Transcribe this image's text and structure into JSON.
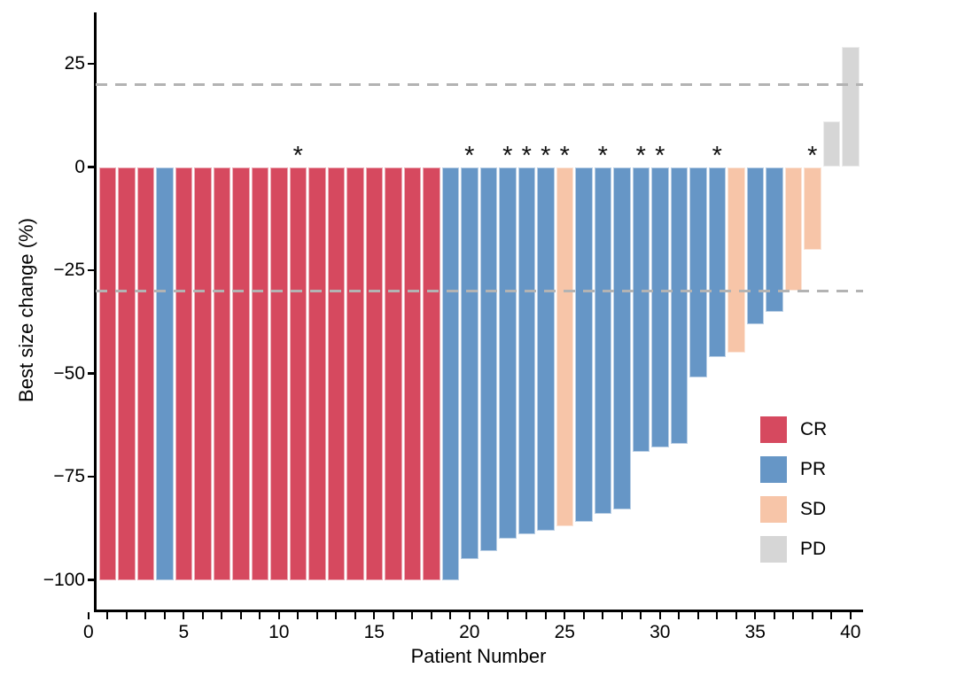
{
  "chart_data": {
    "type": "bar",
    "subtype": "waterfall",
    "title": "",
    "xlabel": "Patient Number",
    "ylabel": "Best size change (%)",
    "xlim": [
      0,
      40.6
    ],
    "ylim": [
      -108,
      37
    ],
    "grid": "off",
    "legend_position": "inside-right",
    "threshold_lines": {
      "values": [
        20,
        -30
      ],
      "style": "dashed",
      "color": "#b3b3b3"
    },
    "y_ticks": [
      {
        "value": 25,
        "label": "25"
      },
      {
        "value": 0,
        "label": "0"
      },
      {
        "value": -25,
        "label": "−25"
      },
      {
        "value": -50,
        "label": "−50"
      },
      {
        "value": -75,
        "label": "−75"
      },
      {
        "value": -100,
        "label": "−100"
      }
    ],
    "x_minor_tick_every": 1,
    "x_labeled_ticks": [
      {
        "value": 0,
        "label": "0"
      },
      {
        "value": 5,
        "label": "5"
      },
      {
        "value": 10,
        "label": "10"
      },
      {
        "value": 15,
        "label": "15"
      },
      {
        "value": 20,
        "label": "20"
      },
      {
        "value": 25,
        "label": "25"
      },
      {
        "value": 30,
        "label": "30"
      },
      {
        "value": 35,
        "label": "35"
      },
      {
        "value": 40,
        "label": "40"
      }
    ],
    "response_colors": {
      "CR": "#d6495f",
      "PR": "#6696c6",
      "SD": "#f7c5a8",
      "PD": "#d6d6d6"
    },
    "legend": [
      {
        "label": "CR",
        "color": "#d6495f"
      },
      {
        "label": "PR",
        "color": "#6696c6"
      },
      {
        "label": "SD",
        "color": "#f7c5a8"
      },
      {
        "label": "PD",
        "color": "#d6d6d6"
      }
    ],
    "annotation_symbol": "*",
    "patients": [
      {
        "patient": 1,
        "change": -100,
        "response": "CR",
        "star": false
      },
      {
        "patient": 2,
        "change": -100,
        "response": "CR",
        "star": false
      },
      {
        "patient": 3,
        "change": -100,
        "response": "CR",
        "star": false
      },
      {
        "patient": 4,
        "change": -100,
        "response": "PR",
        "star": false
      },
      {
        "patient": 5,
        "change": -100,
        "response": "CR",
        "star": false
      },
      {
        "patient": 6,
        "change": -100,
        "response": "CR",
        "star": false
      },
      {
        "patient": 7,
        "change": -100,
        "response": "CR",
        "star": false
      },
      {
        "patient": 8,
        "change": -100,
        "response": "CR",
        "star": false
      },
      {
        "patient": 9,
        "change": -100,
        "response": "CR",
        "star": false
      },
      {
        "patient": 10,
        "change": -100,
        "response": "CR",
        "star": false
      },
      {
        "patient": 11,
        "change": -100,
        "response": "CR",
        "star": true
      },
      {
        "patient": 12,
        "change": -100,
        "response": "CR",
        "star": false
      },
      {
        "patient": 13,
        "change": -100,
        "response": "CR",
        "star": false
      },
      {
        "patient": 14,
        "change": -100,
        "response": "CR",
        "star": false
      },
      {
        "patient": 15,
        "change": -100,
        "response": "CR",
        "star": false
      },
      {
        "patient": 16,
        "change": -100,
        "response": "CR",
        "star": false
      },
      {
        "patient": 17,
        "change": -100,
        "response": "CR",
        "star": false
      },
      {
        "patient": 18,
        "change": -100,
        "response": "CR",
        "star": false
      },
      {
        "patient": 19,
        "change": -100,
        "response": "PR",
        "star": false
      },
      {
        "patient": 20,
        "change": -95,
        "response": "PR",
        "star": true
      },
      {
        "patient": 21,
        "change": -93,
        "response": "PR",
        "star": false
      },
      {
        "patient": 22,
        "change": -90,
        "response": "PR",
        "star": true
      },
      {
        "patient": 23,
        "change": -89,
        "response": "PR",
        "star": true
      },
      {
        "patient": 24,
        "change": -88,
        "response": "PR",
        "star": true
      },
      {
        "patient": 25,
        "change": -87,
        "response": "SD",
        "star": true
      },
      {
        "patient": 26,
        "change": -86,
        "response": "PR",
        "star": false
      },
      {
        "patient": 27,
        "change": -84,
        "response": "PR",
        "star": true
      },
      {
        "patient": 28,
        "change": -83,
        "response": "PR",
        "star": false
      },
      {
        "patient": 29,
        "change": -69,
        "response": "PR",
        "star": true
      },
      {
        "patient": 30,
        "change": -68,
        "response": "PR",
        "star": true
      },
      {
        "patient": 31,
        "change": -67,
        "response": "PR",
        "star": false
      },
      {
        "patient": 32,
        "change": -51,
        "response": "PR",
        "star": false
      },
      {
        "patient": 33,
        "change": -46,
        "response": "PR",
        "star": true
      },
      {
        "patient": 34,
        "change": -45,
        "response": "SD",
        "star": false
      },
      {
        "patient": 35,
        "change": -38,
        "response": "PR",
        "star": false
      },
      {
        "patient": 36,
        "change": -35,
        "response": "PR",
        "star": false
      },
      {
        "patient": 37,
        "change": -30,
        "response": "SD",
        "star": false
      },
      {
        "patient": 38,
        "change": -20,
        "response": "SD",
        "star": true
      },
      {
        "patient": 39,
        "change": 11,
        "response": "PD",
        "star": false
      },
      {
        "patient": 40,
        "change": 29,
        "response": "PD",
        "star": false
      }
    ]
  }
}
